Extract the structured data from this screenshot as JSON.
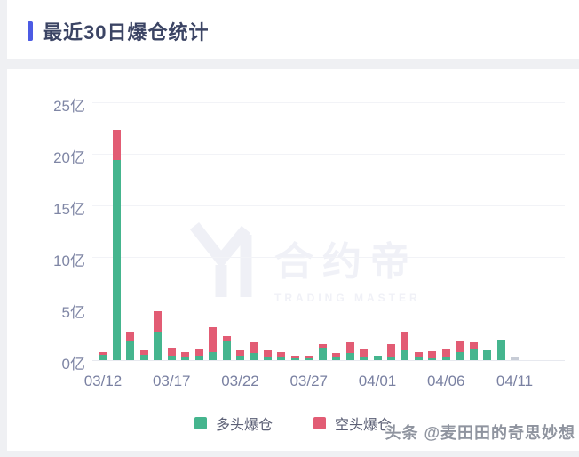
{
  "page": {
    "title": "最近30日爆仓统计",
    "accent_color": "#4c5be4"
  },
  "watermark": {
    "name": "合约帝",
    "subtitle": "TRADING MASTER"
  },
  "source_watermark": "头条 @麦田田的奇思妙想",
  "legend": {
    "long_label": "多头爆仓",
    "short_label": "空头爆仓"
  },
  "chart_data": {
    "type": "bar",
    "stacked": true,
    "title": "最近30日爆仓统计",
    "unit": "亿",
    "ylim": [
      0,
      25
    ],
    "y_ticks": [
      "25亿",
      "20亿",
      "15亿",
      "10亿",
      "5亿",
      "0亿"
    ],
    "x_tick_labels": [
      "03/12",
      "03/17",
      "03/22",
      "03/27",
      "04/01",
      "04/06",
      "04/11"
    ],
    "x_tick_interval": 5,
    "grid": true,
    "legend_position": "bottom",
    "categories": [
      "03/12",
      "03/13",
      "03/14",
      "03/15",
      "03/16",
      "03/17",
      "03/18",
      "03/19",
      "03/20",
      "03/21",
      "03/22",
      "03/23",
      "03/24",
      "03/25",
      "03/26",
      "03/27",
      "03/28",
      "03/29",
      "03/30",
      "03/31",
      "04/01",
      "04/02",
      "04/03",
      "04/04",
      "04/05",
      "04/06",
      "04/07",
      "04/08",
      "04/09",
      "04/10",
      "04/11"
    ],
    "series": [
      {
        "name": "多头爆仓",
        "color": "#45b58e",
        "values": [
          0.5,
          19.4,
          1.9,
          0.5,
          2.8,
          0.45,
          0.3,
          0.4,
          0.8,
          1.8,
          0.4,
          0.65,
          0.35,
          0.25,
          0.15,
          0.15,
          1.25,
          0.35,
          0.7,
          0.3,
          0.45,
          0.35,
          0.95,
          0.3,
          0.15,
          0.3,
          0.8,
          1.1,
          0.95,
          2.0,
          0
        ]
      },
      {
        "name": "空头爆仓",
        "color": "#e25c74",
        "values": [
          0.3,
          2.9,
          0.9,
          0.45,
          1.9,
          0.8,
          0.5,
          0.7,
          2.4,
          0.5,
          0.55,
          1.05,
          0.6,
          0.5,
          0.25,
          0.25,
          0.3,
          0.35,
          1.0,
          0.7,
          0,
          1.2,
          1.8,
          0.5,
          0.7,
          0.85,
          1.1,
          0.6,
          0,
          0,
          0
        ]
      }
    ],
    "zero_placeholder_color": "#c7ccd6"
  }
}
